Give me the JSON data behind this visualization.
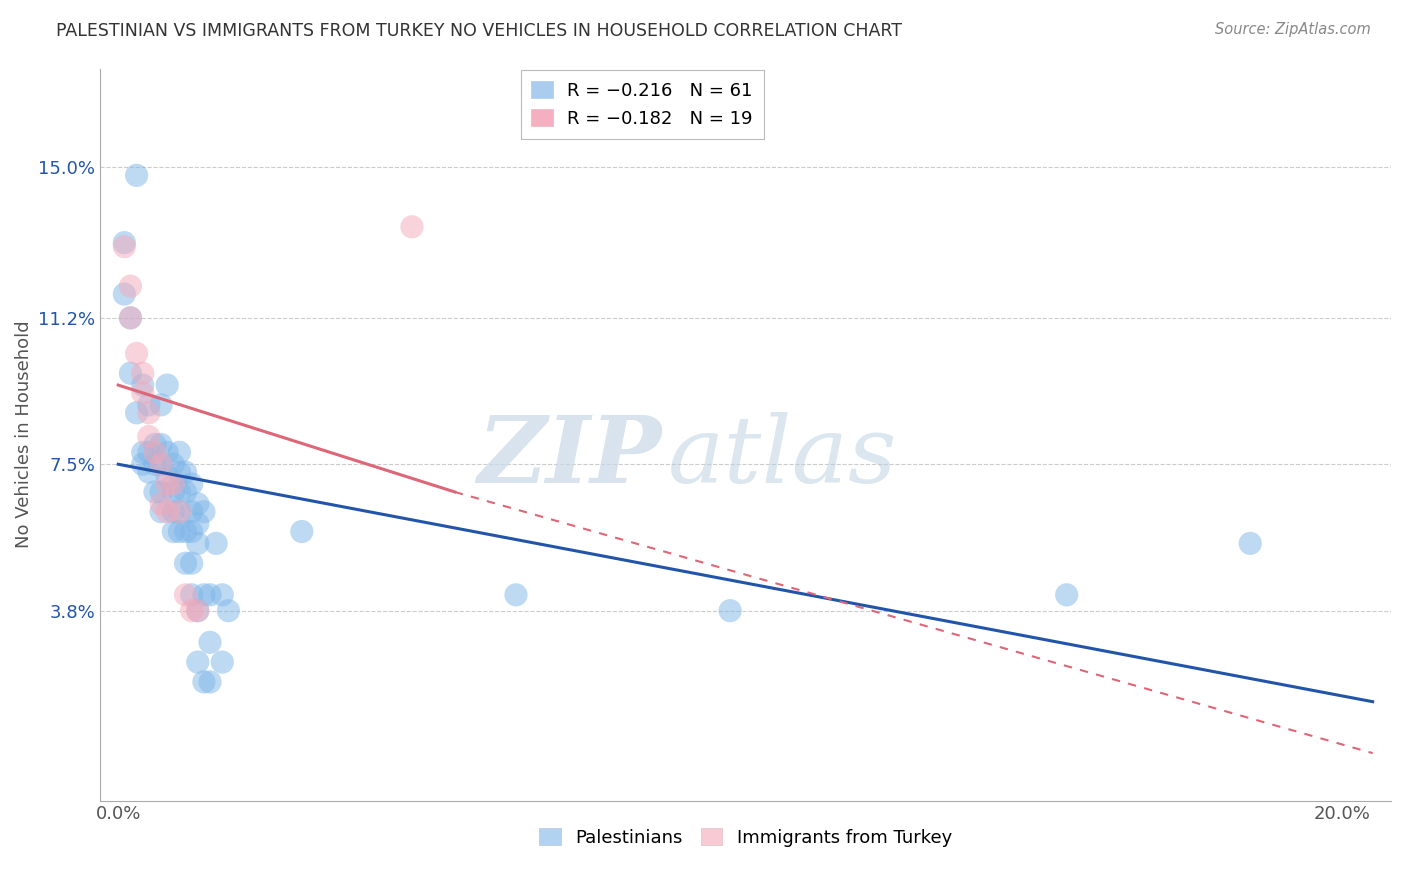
{
  "title": "PALESTINIAN VS IMMIGRANTS FROM TURKEY NO VEHICLES IN HOUSEHOLD CORRELATION CHART",
  "source": "Source: ZipAtlas.com",
  "xlabel_ticks": [
    0.0,
    0.04,
    0.08,
    0.12,
    0.16,
    0.2
  ],
  "xlabel_tick_labels": [
    "0.0%",
    "",
    "",
    "",
    "",
    "20.0%"
  ],
  "ylabel_ticks": [
    0.038,
    0.075,
    0.112,
    0.15
  ],
  "ylabel_tick_labels": [
    "3.8%",
    "7.5%",
    "11.2%",
    "15.0%"
  ],
  "xlim": [
    -0.003,
    0.208
  ],
  "ylim": [
    -0.01,
    0.175
  ],
  "ylabel": "No Vehicles in Household",
  "blue_scatter": [
    [
      0.001,
      0.131
    ],
    [
      0.001,
      0.118
    ],
    [
      0.002,
      0.112
    ],
    [
      0.002,
      0.098
    ],
    [
      0.003,
      0.148
    ],
    [
      0.003,
      0.088
    ],
    [
      0.004,
      0.095
    ],
    [
      0.004,
      0.078
    ],
    [
      0.004,
      0.075
    ],
    [
      0.005,
      0.09
    ],
    [
      0.005,
      0.078
    ],
    [
      0.005,
      0.073
    ],
    [
      0.006,
      0.08
    ],
    [
      0.006,
      0.075
    ],
    [
      0.006,
      0.068
    ],
    [
      0.007,
      0.09
    ],
    [
      0.007,
      0.08
    ],
    [
      0.007,
      0.075
    ],
    [
      0.007,
      0.068
    ],
    [
      0.007,
      0.063
    ],
    [
      0.008,
      0.095
    ],
    [
      0.008,
      0.078
    ],
    [
      0.008,
      0.072
    ],
    [
      0.009,
      0.075
    ],
    [
      0.009,
      0.068
    ],
    [
      0.009,
      0.063
    ],
    [
      0.009,
      0.058
    ],
    [
      0.01,
      0.078
    ],
    [
      0.01,
      0.073
    ],
    [
      0.01,
      0.068
    ],
    [
      0.01,
      0.063
    ],
    [
      0.01,
      0.058
    ],
    [
      0.011,
      0.073
    ],
    [
      0.011,
      0.068
    ],
    [
      0.011,
      0.058
    ],
    [
      0.011,
      0.05
    ],
    [
      0.012,
      0.07
    ],
    [
      0.012,
      0.063
    ],
    [
      0.012,
      0.058
    ],
    [
      0.012,
      0.05
    ],
    [
      0.012,
      0.042
    ],
    [
      0.013,
      0.065
    ],
    [
      0.013,
      0.06
    ],
    [
      0.013,
      0.055
    ],
    [
      0.013,
      0.038
    ],
    [
      0.013,
      0.025
    ],
    [
      0.014,
      0.063
    ],
    [
      0.014,
      0.042
    ],
    [
      0.014,
      0.02
    ],
    [
      0.015,
      0.042
    ],
    [
      0.015,
      0.03
    ],
    [
      0.015,
      0.02
    ],
    [
      0.016,
      0.055
    ],
    [
      0.017,
      0.042
    ],
    [
      0.017,
      0.025
    ],
    [
      0.018,
      0.038
    ],
    [
      0.03,
      0.058
    ],
    [
      0.065,
      0.042
    ],
    [
      0.1,
      0.038
    ],
    [
      0.155,
      0.042
    ],
    [
      0.185,
      0.055
    ]
  ],
  "pink_scatter": [
    [
      0.001,
      0.13
    ],
    [
      0.002,
      0.12
    ],
    [
      0.002,
      0.112
    ],
    [
      0.003,
      0.103
    ],
    [
      0.004,
      0.098
    ],
    [
      0.004,
      0.093
    ],
    [
      0.005,
      0.088
    ],
    [
      0.005,
      0.082
    ],
    [
      0.006,
      0.078
    ],
    [
      0.007,
      0.075
    ],
    [
      0.007,
      0.065
    ],
    [
      0.008,
      0.07
    ],
    [
      0.008,
      0.063
    ],
    [
      0.009,
      0.07
    ],
    [
      0.01,
      0.063
    ],
    [
      0.011,
      0.042
    ],
    [
      0.012,
      0.038
    ],
    [
      0.013,
      0.038
    ],
    [
      0.048,
      0.135
    ]
  ],
  "blue_line": {
    "x": [
      0.0,
      0.205
    ],
    "y": [
      0.075,
      0.015
    ]
  },
  "pink_line_solid": {
    "x": [
      0.0,
      0.055
    ],
    "y": [
      0.095,
      0.068
    ]
  },
  "pink_line_dashed": {
    "x": [
      0.055,
      0.205
    ],
    "y": [
      0.068,
      0.002
    ]
  },
  "blue_color": "#7eb6e8",
  "pink_color": "#f4a8b8",
  "blue_line_color": "#2255aa",
  "pink_line_color": "#dd6677",
  "watermark_zip": "ZIP",
  "watermark_atlas": "atlas",
  "background_color": "#ffffff",
  "grid_color": "#cccccc"
}
